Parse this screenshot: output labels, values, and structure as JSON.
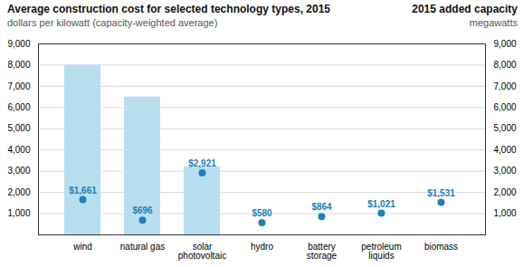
{
  "chart_data": {
    "type": "bar",
    "title": "Average construction cost for selected technology types, 2015",
    "subtitle": "dollars per kilowatt (capacity-weighted average)",
    "categories": [
      "wind",
      "natural gas",
      "solar\nphotovoltaic",
      "hydro",
      "battery\nstorage",
      "petroleum\nliquids",
      "biomass"
    ],
    "series": [
      {
        "name": "2015 added capacity",
        "type": "bar",
        "axis": "y2",
        "color": "#b8dff0",
        "values": [
          8000,
          6500,
          3200,
          0,
          0,
          0,
          0
        ]
      },
      {
        "type": "scatter",
        "color": "#2080b8",
        "data_labels": true,
        "values": [
          1661,
          696,
          2921,
          580,
          864,
          1021,
          1531
        ],
        "value_labels": [
          "$1,661",
          "$696",
          "$2,921",
          "$580",
          "$864",
          "$1,021",
          "$1,531"
        ]
      }
    ],
    "y2label": "megawatts",
    "ylim": [
      0,
      9000
    ],
    "yticks": [
      {
        "value": 1000,
        "label": "1,000"
      },
      {
        "value": 2000,
        "label": "2,000"
      },
      {
        "value": 3000,
        "label": "3,000"
      },
      {
        "value": 4000,
        "label": "4,000"
      },
      {
        "value": 5000,
        "label": "5,000"
      },
      {
        "value": 6000,
        "label": "6,000"
      },
      {
        "value": 7000,
        "label": "7,000"
      },
      {
        "value": 8000,
        "label": "8,000"
      },
      {
        "value": 9000,
        "label": "9,000"
      }
    ],
    "y2lim": [
      0,
      9000
    ],
    "y2ticks": [
      {
        "value": 1000,
        "label": "1,000"
      },
      {
        "value": 2000,
        "label": "2,000"
      },
      {
        "value": 3000,
        "label": "3,000"
      },
      {
        "value": 4000,
        "label": "4,000"
      },
      {
        "value": 5000,
        "label": "5,000"
      },
      {
        "value": 6000,
        "label": "6,000"
      },
      {
        "value": 7000,
        "label": "7,000"
      },
      {
        "value": 8000,
        "label": "8,000"
      },
      {
        "value": 9000,
        "label": "9,000"
      }
    ],
    "grid": true
  }
}
